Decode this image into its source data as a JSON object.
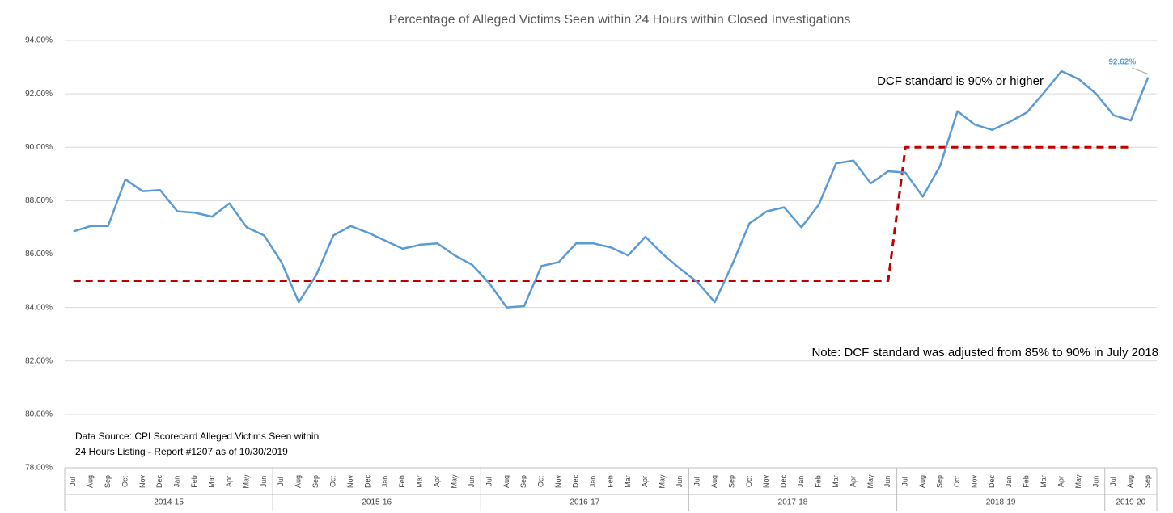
{
  "chart_data": {
    "type": "line",
    "title": "Percentage of Alleged Victims Seen within 24 Hours within Closed Investigations",
    "categories": [
      "Jul",
      "Aug",
      "Sep",
      "Oct",
      "Nov",
      "Dec",
      "Jan",
      "Feb",
      "Mar",
      "Apr",
      "May",
      "Jun",
      "Jul",
      "Aug",
      "Sep",
      "Oct",
      "Nov",
      "Dec",
      "Jan",
      "Feb",
      "Mar",
      "Apr",
      "May",
      "Jun",
      "Jul",
      "Aug",
      "Sep",
      "Oct",
      "Nov",
      "Dec",
      "Jan",
      "Feb",
      "Mar",
      "Apr",
      "May",
      "Jun",
      "Jul",
      "Aug",
      "Sep",
      "Oct",
      "Nov",
      "Dec",
      "Jan",
      "Feb",
      "Mar",
      "Apr",
      "May",
      "Jun",
      "Jul",
      "Aug",
      "Sep",
      "Oct",
      "Nov",
      "Dec",
      "Jan",
      "Feb",
      "Mar",
      "Apr",
      "May",
      "Jun",
      "Jul",
      "Aug",
      "Sep"
    ],
    "category_groups": [
      "2014-15",
      "2014-15",
      "2014-15",
      "2014-15",
      "2014-15",
      "2014-15",
      "2014-15",
      "2014-15",
      "2014-15",
      "2014-15",
      "2014-15",
      "2014-15",
      "2015-16",
      "2015-16",
      "2015-16",
      "2015-16",
      "2015-16",
      "2015-16",
      "2015-16",
      "2015-16",
      "2015-16",
      "2015-16",
      "2015-16",
      "2015-16",
      "2016-17",
      "2016-17",
      "2016-17",
      "2016-17",
      "2016-17",
      "2016-17",
      "2016-17",
      "2016-17",
      "2016-17",
      "2016-17",
      "2016-17",
      "2016-17",
      "2017-18",
      "2017-18",
      "2017-18",
      "2017-18",
      "2017-18",
      "2017-18",
      "2017-18",
      "2017-18",
      "2017-18",
      "2017-18",
      "2017-18",
      "2017-18",
      "2018-19",
      "2018-19",
      "2018-19",
      "2018-19",
      "2018-19",
      "2018-19",
      "2018-19",
      "2018-19",
      "2018-19",
      "2018-19",
      "2018-19",
      "2018-19",
      "2019-20",
      "2019-20",
      "2019-20"
    ],
    "series": [
      {
        "color": "#5b9bd5",
        "values": [
          86.85,
          87.05,
          87.05,
          88.8,
          88.35,
          88.4,
          87.6,
          87.55,
          87.4,
          87.9,
          87.0,
          86.7,
          85.7,
          84.2,
          85.2,
          86.7,
          87.05,
          86.8,
          86.5,
          86.2,
          86.35,
          86.4,
          85.95,
          85.6,
          84.9,
          84.0,
          84.05,
          85.55,
          85.7,
          86.4,
          86.4,
          86.25,
          85.95,
          86.65,
          86.0,
          85.45,
          84.95,
          84.2,
          85.6,
          87.15,
          87.6,
          87.75,
          87.0,
          87.85,
          89.4,
          89.5,
          88.65,
          89.1,
          89.05,
          88.15,
          89.3,
          91.35,
          90.85,
          90.65,
          90.95,
          91.3,
          92.05,
          92.85,
          92.55,
          92.0,
          91.2,
          91.0,
          92.62
        ],
        "value_labels": [
          null,
          null,
          null,
          null,
          null,
          null,
          null,
          null,
          null,
          null,
          null,
          null,
          null,
          null,
          null,
          null,
          null,
          null,
          null,
          null,
          null,
          null,
          null,
          null,
          null,
          null,
          null,
          null,
          null,
          null,
          null,
          null,
          null,
          null,
          null,
          null,
          null,
          null,
          null,
          null,
          null,
          null,
          null,
          null,
          null,
          null,
          null,
          null,
          null,
          null,
          null,
          null,
          null,
          null,
          null,
          null,
          null,
          null,
          null,
          null,
          null,
          null,
          "92.62%"
        ]
      },
      {
        "color": "#c00000",
        "dashed": true,
        "values": [
          85,
          85,
          85,
          85,
          85,
          85,
          85,
          85,
          85,
          85,
          85,
          85,
          85,
          85,
          85,
          85,
          85,
          85,
          85,
          85,
          85,
          85,
          85,
          85,
          85,
          85,
          85,
          85,
          85,
          85,
          85,
          85,
          85,
          85,
          85,
          85,
          85,
          85,
          85,
          85,
          85,
          85,
          85,
          85,
          85,
          85,
          85,
          85,
          90,
          90,
          90,
          90,
          90,
          90,
          90,
          90,
          90,
          90,
          90,
          90,
          90,
          90,
          null
        ]
      }
    ],
    "ylim": [
      78,
      94
    ],
    "yticks": [
      {
        "value": 78,
        "label": "78.00%"
      },
      {
        "value": 80,
        "label": "80.00%"
      },
      {
        "value": 82,
        "label": "82.00%"
      },
      {
        "value": 84,
        "label": "84.00%"
      },
      {
        "value": 86,
        "label": "86.00%"
      },
      {
        "value": 88,
        "label": "88.00%"
      },
      {
        "value": 90,
        "label": "90.00%"
      },
      {
        "value": 92,
        "label": "92.00%"
      },
      {
        "value": 94,
        "label": "94.00%"
      }
    ],
    "grid": true,
    "annotations": [
      "DCF standard is 90% or higher",
      "Note: DCF standard was adjusted from 85% to 90% in July 2018"
    ],
    "source": [
      "Data Source: CPI Scorecard Alleged Victims Seen within",
      "24 Hours Listing - Report #1207  as of 10/30/2019"
    ]
  }
}
